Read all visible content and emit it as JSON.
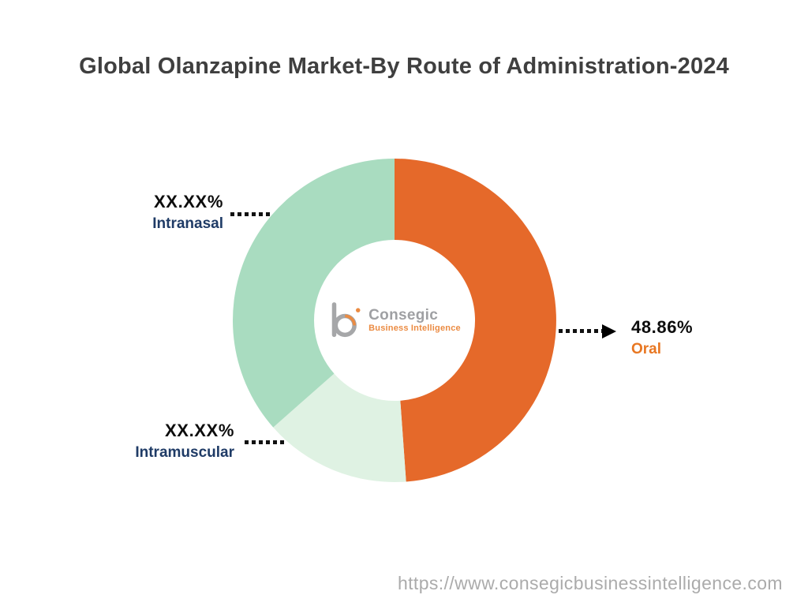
{
  "page": {
    "footer_url": "https://www.consegicbusinessintelligence.com"
  },
  "logo": {
    "name": "Consegic",
    "subtitle": "Business Intelligence",
    "mark_gray": "#97989b",
    "mark_orange": "#e87722"
  },
  "chart_data": {
    "type": "pie",
    "donut": true,
    "title": "Global Olanzapine Market-By Route of Administration-2024",
    "start_angle_deg": 0,
    "direction": "clockwise",
    "legend_position": "callouts",
    "segments": [
      {
        "label": "Oral",
        "display_value": "48.86%",
        "value": 48.86,
        "color": "#e5692a",
        "label_color": "#e87722"
      },
      {
        "label": "Intramuscular",
        "display_value": "XX.XX%",
        "value": 14.64,
        "color": "#dff2e3",
        "label_color": "#1f3b66"
      },
      {
        "label": "Intranasal",
        "display_value": "XX.XX%",
        "value": 36.5,
        "color": "#a9dcc0",
        "label_color": "#1f3b66"
      }
    ]
  }
}
